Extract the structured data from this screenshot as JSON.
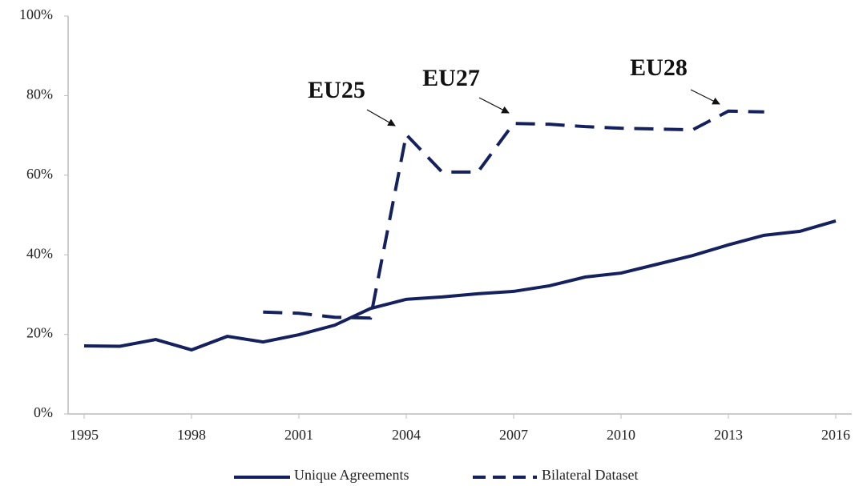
{
  "chart_data": {
    "type": "line",
    "x": [
      1995,
      1996,
      1997,
      1998,
      1999,
      2000,
      2001,
      2002,
      2003,
      2004,
      2005,
      2006,
      2007,
      2008,
      2009,
      2010,
      2011,
      2012,
      2013,
      2014,
      2015,
      2016
    ],
    "series": [
      {
        "name": "Unique Agreements",
        "color": "#14215e",
        "style": "solid",
        "values": [
          17.1,
          17.0,
          18.7,
          16.1,
          19.5,
          18.1,
          19.9,
          22.3,
          26.5,
          28.8,
          29.4,
          30.2,
          30.8,
          32.2,
          34.4,
          35.4,
          37.6,
          39.8,
          42.5,
          44.9,
          45.9,
          48.5
        ]
      },
      {
        "name": "Bilateral Dataset",
        "color": "#14215e",
        "style": "dashed",
        "values": [
          null,
          null,
          null,
          null,
          null,
          25.6,
          25.3,
          24.3,
          24.1,
          70.2,
          60.8,
          60.8,
          73.0,
          72.8,
          72.2,
          71.8,
          71.6,
          71.4,
          76.1,
          75.9,
          null,
          null
        ]
      }
    ],
    "annotations": [
      "EU25",
      "EU27",
      "EU28"
    ],
    "xlim": [
      1995,
      2016
    ],
    "xticks": [
      1995,
      1998,
      2001,
      2004,
      2007,
      2010,
      2013,
      2016
    ],
    "ylim": [
      0,
      100
    ],
    "yticks": [
      {
        "value": 0,
        "label": "0%"
      },
      {
        "value": 20,
        "label": "20%"
      },
      {
        "value": 40,
        "label": "40%"
      },
      {
        "value": 60,
        "label": "60%"
      },
      {
        "value": 80,
        "label": "80%"
      },
      {
        "value": 100,
        "label": "100%"
      }
    ],
    "grid": false,
    "legend": "bottom"
  }
}
